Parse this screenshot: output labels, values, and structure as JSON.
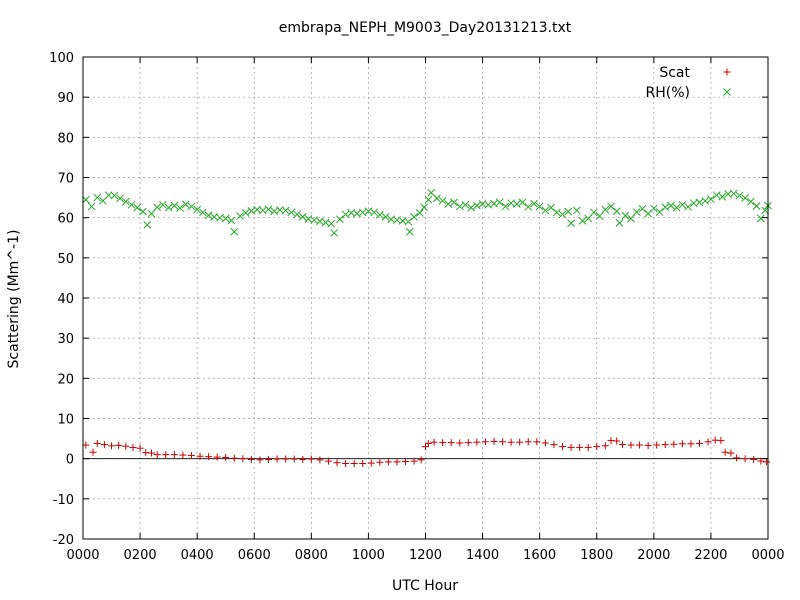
{
  "chart_data": {
    "type": "scatter",
    "title": "embrapa_NEPH_M9003_Day20131213.txt",
    "xlabel": "UTC Hour",
    "ylabel": "Scattering (Mm^-1)",
    "xlim": [
      0,
      24
    ],
    "ylim": [
      -20,
      100
    ],
    "x_ticks": [
      0,
      2,
      4,
      6,
      8,
      10,
      12,
      14,
      16,
      18,
      20,
      22,
      24
    ],
    "x_tick_labels": [
      "0000",
      "0200",
      "0400",
      "0600",
      "0800",
      "1000",
      "1200",
      "1400",
      "1600",
      "1800",
      "2000",
      "2200",
      "0000"
    ],
    "y_ticks": [
      -20,
      -10,
      0,
      10,
      20,
      30,
      40,
      50,
      60,
      70,
      80,
      90,
      100
    ],
    "grid": true,
    "zero_line": true,
    "legend_position": "top-right",
    "series": [
      {
        "name": "Scat",
        "marker": "plus",
        "color": "#cc0000",
        "points": [
          [
            0.1,
            3.4
          ],
          [
            0.35,
            1.6
          ],
          [
            0.5,
            3.8
          ],
          [
            0.75,
            3.5
          ],
          [
            1.0,
            3.2
          ],
          [
            1.25,
            3.3
          ],
          [
            1.5,
            3.1
          ],
          [
            1.75,
            2.8
          ],
          [
            2.0,
            2.6
          ],
          [
            2.2,
            1.5
          ],
          [
            2.4,
            1.4
          ],
          [
            2.6,
            1.0
          ],
          [
            2.9,
            1.0
          ],
          [
            3.2,
            1.0
          ],
          [
            3.5,
            0.9
          ],
          [
            3.8,
            0.8
          ],
          [
            4.1,
            0.6
          ],
          [
            4.4,
            0.5
          ],
          [
            4.7,
            0.4
          ],
          [
            5.0,
            0.3
          ],
          [
            5.3,
            0.1
          ],
          [
            5.6,
            0.0
          ],
          [
            5.9,
            -0.2
          ],
          [
            6.2,
            -0.3
          ],
          [
            6.5,
            -0.2
          ],
          [
            6.8,
            -0.1
          ],
          [
            7.1,
            -0.1
          ],
          [
            7.4,
            -0.1
          ],
          [
            7.7,
            -0.2
          ],
          [
            8.0,
            -0.1
          ],
          [
            8.3,
            -0.3
          ],
          [
            8.6,
            -0.6
          ],
          [
            8.9,
            -1.0
          ],
          [
            9.2,
            -1.2
          ],
          [
            9.5,
            -1.2
          ],
          [
            9.8,
            -1.2
          ],
          [
            10.1,
            -1.1
          ],
          [
            10.4,
            -0.9
          ],
          [
            10.7,
            -0.8
          ],
          [
            11.0,
            -0.8
          ],
          [
            11.3,
            -0.7
          ],
          [
            11.6,
            -0.6
          ],
          [
            11.85,
            -0.3
          ],
          [
            12.0,
            3.0
          ],
          [
            12.1,
            3.8
          ],
          [
            12.3,
            4.1
          ],
          [
            12.6,
            4.0
          ],
          [
            12.9,
            4.0
          ],
          [
            13.2,
            3.9
          ],
          [
            13.5,
            4.0
          ],
          [
            13.8,
            4.1
          ],
          [
            14.1,
            4.2
          ],
          [
            14.4,
            4.3
          ],
          [
            14.7,
            4.2
          ],
          [
            15.0,
            4.1
          ],
          [
            15.3,
            4.1
          ],
          [
            15.6,
            4.2
          ],
          [
            15.9,
            4.2
          ],
          [
            16.2,
            3.9
          ],
          [
            16.5,
            3.5
          ],
          [
            16.8,
            3.0
          ],
          [
            17.1,
            2.8
          ],
          [
            17.4,
            2.8
          ],
          [
            17.7,
            2.8
          ],
          [
            18.0,
            3.0
          ],
          [
            18.3,
            3.2
          ],
          [
            18.5,
            4.5
          ],
          [
            18.7,
            4.4
          ],
          [
            18.9,
            3.5
          ],
          [
            19.2,
            3.4
          ],
          [
            19.5,
            3.4
          ],
          [
            19.8,
            3.3
          ],
          [
            20.1,
            3.4
          ],
          [
            20.4,
            3.5
          ],
          [
            20.7,
            3.6
          ],
          [
            21.0,
            3.7
          ],
          [
            21.3,
            3.7
          ],
          [
            21.6,
            3.8
          ],
          [
            21.9,
            4.2
          ],
          [
            22.15,
            4.6
          ],
          [
            22.35,
            4.5
          ],
          [
            22.5,
            1.6
          ],
          [
            22.7,
            1.4
          ],
          [
            22.9,
            0.2
          ],
          [
            23.2,
            0.0
          ],
          [
            23.5,
            -0.2
          ],
          [
            23.75,
            -0.6
          ],
          [
            23.95,
            -0.8
          ]
        ]
      },
      {
        "name": "RH(%)",
        "marker": "x",
        "color": "#22aa22",
        "points": [
          [
            0.1,
            64.5
          ],
          [
            0.3,
            62.8
          ],
          [
            0.5,
            65.0
          ],
          [
            0.7,
            64.2
          ],
          [
            0.9,
            65.6
          ],
          [
            1.1,
            65.5
          ],
          [
            1.3,
            64.8
          ],
          [
            1.5,
            64.0
          ],
          [
            1.7,
            63.2
          ],
          [
            1.9,
            62.5
          ],
          [
            2.1,
            61.5
          ],
          [
            2.25,
            58.2
          ],
          [
            2.4,
            61.0
          ],
          [
            2.6,
            62.6
          ],
          [
            2.8,
            63.2
          ],
          [
            3.0,
            62.5
          ],
          [
            3.2,
            63.0
          ],
          [
            3.4,
            62.4
          ],
          [
            3.6,
            63.3
          ],
          [
            3.8,
            62.8
          ],
          [
            4.0,
            62.0
          ],
          [
            4.2,
            61.3
          ],
          [
            4.4,
            60.6
          ],
          [
            4.6,
            60.2
          ],
          [
            4.8,
            60.0
          ],
          [
            5.0,
            59.8
          ],
          [
            5.2,
            59.3
          ],
          [
            5.3,
            56.5
          ],
          [
            5.5,
            60.4
          ],
          [
            5.7,
            61.2
          ],
          [
            5.9,
            61.7
          ],
          [
            6.1,
            62.0
          ],
          [
            6.3,
            61.8
          ],
          [
            6.5,
            62.1
          ],
          [
            6.7,
            61.6
          ],
          [
            6.9,
            61.9
          ],
          [
            7.1,
            61.8
          ],
          [
            7.3,
            61.3
          ],
          [
            7.5,
            60.8
          ],
          [
            7.7,
            60.2
          ],
          [
            7.9,
            59.7
          ],
          [
            8.1,
            59.4
          ],
          [
            8.3,
            59.1
          ],
          [
            8.5,
            58.8
          ],
          [
            8.7,
            58.5
          ],
          [
            8.8,
            56.2
          ],
          [
            9.0,
            59.6
          ],
          [
            9.2,
            60.8
          ],
          [
            9.4,
            61.2
          ],
          [
            9.6,
            61.0
          ],
          [
            9.8,
            61.3
          ],
          [
            10.0,
            61.6
          ],
          [
            10.2,
            61.3
          ],
          [
            10.4,
            60.7
          ],
          [
            10.6,
            60.2
          ],
          [
            10.8,
            59.6
          ],
          [
            11.0,
            59.4
          ],
          [
            11.2,
            59.2
          ],
          [
            11.4,
            59.0
          ],
          [
            11.45,
            56.5
          ],
          [
            11.6,
            60.2
          ],
          [
            11.8,
            61.2
          ],
          [
            11.95,
            62.6
          ],
          [
            12.1,
            64.5
          ],
          [
            12.2,
            66.2
          ],
          [
            12.4,
            64.8
          ],
          [
            12.6,
            64.2
          ],
          [
            12.8,
            63.4
          ],
          [
            13.0,
            63.8
          ],
          [
            13.2,
            62.8
          ],
          [
            13.4,
            63.2
          ],
          [
            13.6,
            62.5
          ],
          [
            13.8,
            63.0
          ],
          [
            14.0,
            63.4
          ],
          [
            14.2,
            63.2
          ],
          [
            14.4,
            63.5
          ],
          [
            14.6,
            63.8
          ],
          [
            14.8,
            62.8
          ],
          [
            15.0,
            63.6
          ],
          [
            15.2,
            63.4
          ],
          [
            15.4,
            63.8
          ],
          [
            15.6,
            62.7
          ],
          [
            15.8,
            63.5
          ],
          [
            16.0,
            62.8
          ],
          [
            16.2,
            61.8
          ],
          [
            16.4,
            62.5
          ],
          [
            16.6,
            61.3
          ],
          [
            16.8,
            60.8
          ],
          [
            17.0,
            61.5
          ],
          [
            17.1,
            58.6
          ],
          [
            17.3,
            61.8
          ],
          [
            17.5,
            59.2
          ],
          [
            17.7,
            59.8
          ],
          [
            17.9,
            61.3
          ],
          [
            18.1,
            60.4
          ],
          [
            18.3,
            62.0
          ],
          [
            18.5,
            62.8
          ],
          [
            18.7,
            61.6
          ],
          [
            18.8,
            58.7
          ],
          [
            19.0,
            60.5
          ],
          [
            19.2,
            59.8
          ],
          [
            19.4,
            61.4
          ],
          [
            19.6,
            62.2
          ],
          [
            19.8,
            61.0
          ],
          [
            20.0,
            62.3
          ],
          [
            20.2,
            61.4
          ],
          [
            20.4,
            62.6
          ],
          [
            20.6,
            63.0
          ],
          [
            20.8,
            62.5
          ],
          [
            21.0,
            63.2
          ],
          [
            21.2,
            62.7
          ],
          [
            21.4,
            63.6
          ],
          [
            21.6,
            63.8
          ],
          [
            21.8,
            64.2
          ],
          [
            22.0,
            64.6
          ],
          [
            22.2,
            65.6
          ],
          [
            22.4,
            65.2
          ],
          [
            22.6,
            65.9
          ],
          [
            22.8,
            66.0
          ],
          [
            23.0,
            65.5
          ],
          [
            23.2,
            64.9
          ],
          [
            23.4,
            64.0
          ],
          [
            23.6,
            62.9
          ],
          [
            23.75,
            59.8
          ],
          [
            23.9,
            61.8
          ],
          [
            24.0,
            63.0
          ]
        ]
      }
    ]
  }
}
